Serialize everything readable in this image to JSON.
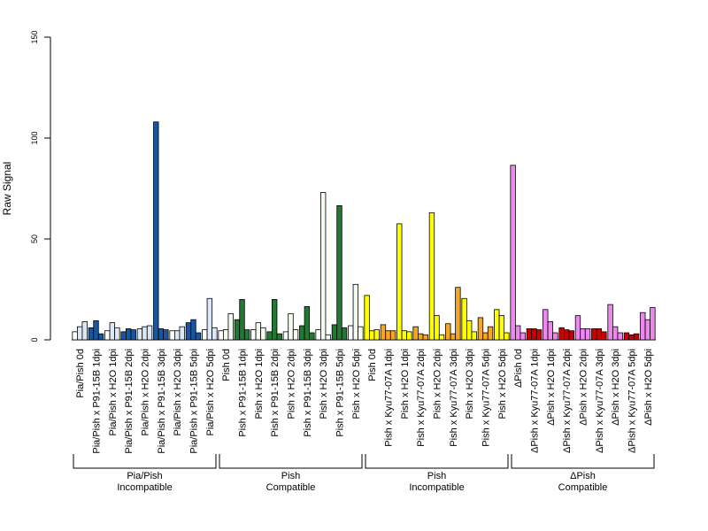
{
  "chart_data": {
    "type": "bar",
    "ylabel": "Raw Signal",
    "ylim": [
      0,
      150
    ],
    "yticks": [
      0,
      50,
      100,
      150
    ],
    "colors": {
      "white": "#ffffff",
      "pale_blue": "#dce8f6",
      "blue": "#1a56a0",
      "pale_green": "#f4fbf0",
      "green": "#217a33",
      "yellow": "#ffff00",
      "orange": "#f5a623",
      "red": "#cc0000",
      "violet": "#ee88ee"
    },
    "categories": [
      {
        "label": "Pia/Pish 0d",
        "values": [
          4,
          6.5,
          9
        ],
        "colors": [
          "white",
          "pale_blue",
          "pale_blue"
        ]
      },
      {
        "label": "Pia/Pish x P91-15B 1dpi",
        "values": [
          6,
          9.5,
          3
        ],
        "colors": [
          "blue",
          "blue",
          "blue"
        ]
      },
      {
        "label": "Pia/Pish x H2O 1dpi",
        "values": [
          4.5,
          8.5,
          6
        ],
        "colors": [
          "white",
          "pale_blue",
          "pale_blue"
        ]
      },
      {
        "label": "Pia/Pish x P91-15B 2dpi",
        "values": [
          4,
          5.5,
          5
        ],
        "colors": [
          "blue",
          "blue",
          "blue"
        ]
      },
      {
        "label": "Pia/Pish x H2O 2dpi",
        "values": [
          5.5,
          6.5,
          7
        ],
        "colors": [
          "pale_blue",
          "pale_blue",
          "pale_blue"
        ]
      },
      {
        "label": "Pia/Pish x P91-15B 3dpi",
        "values": [
          108,
          5.5,
          5
        ],
        "colors": [
          "blue",
          "blue",
          "blue"
        ]
      },
      {
        "label": "Pia/Pish x H2O 3dpi",
        "values": [
          4.5,
          4.5,
          6.5
        ],
        "colors": [
          "white",
          "pale_blue",
          "pale_blue"
        ]
      },
      {
        "label": "Pia/Pish x P91-15B 5dpi",
        "values": [
          8.5,
          10,
          3.5
        ],
        "colors": [
          "blue",
          "blue",
          "blue"
        ]
      },
      {
        "label": "Pia/Pish x H2O 5dpi",
        "values": [
          5,
          20.5,
          6
        ],
        "colors": [
          "white",
          "pale_blue",
          "pale_blue"
        ]
      },
      {
        "label": "Pish 0d",
        "values": [
          4.5,
          5,
          13
        ],
        "colors": [
          "white",
          "pale_green",
          "pale_green"
        ]
      },
      {
        "label": "Pish x P91-15B 1dpi",
        "values": [
          10,
          20,
          5
        ],
        "colors": [
          "green",
          "green",
          "green"
        ]
      },
      {
        "label": "Pish x H2O 1dpi",
        "values": [
          5,
          8.5,
          6
        ],
        "colors": [
          "white",
          "pale_green",
          "pale_green"
        ]
      },
      {
        "label": "Pish x P91-15B 2dpi",
        "values": [
          4,
          20,
          3
        ],
        "colors": [
          "green",
          "green",
          "green"
        ]
      },
      {
        "label": "Pish x H2O 2dpi",
        "values": [
          4,
          13,
          5
        ],
        "colors": [
          "white",
          "pale_green",
          "pale_green"
        ]
      },
      {
        "label": "Pish x P91-15B 3dpi",
        "values": [
          7,
          16.5,
          3.5
        ],
        "colors": [
          "green",
          "green",
          "green"
        ]
      },
      {
        "label": "Pish x H2O 3dpi",
        "values": [
          5,
          73,
          2.5
        ],
        "colors": [
          "white",
          "pale_green",
          "pale_green"
        ]
      },
      {
        "label": "Pish x P91-15B 5dpi",
        "values": [
          7.5,
          66.5,
          6
        ],
        "colors": [
          "green",
          "green",
          "green"
        ]
      },
      {
        "label": "Pish x H2O 5dpi",
        "values": [
          7,
          27.5,
          6.5
        ],
        "colors": [
          "white",
          "pale_green",
          "pale_green"
        ]
      },
      {
        "label": "Pish 0d",
        "values": [
          22,
          4.5,
          5
        ],
        "colors": [
          "yellow",
          "yellow",
          "yellow"
        ]
      },
      {
        "label": "Pish x Kyu77-07A 1dpi",
        "values": [
          7.5,
          4.5,
          4.5
        ],
        "colors": [
          "orange",
          "orange",
          "orange"
        ]
      },
      {
        "label": "Pish x H2O 1dpi",
        "values": [
          57.5,
          4.5,
          4
        ],
        "colors": [
          "yellow",
          "yellow",
          "yellow"
        ]
      },
      {
        "label": "Pish x Kyu77-07A 2dpi",
        "values": [
          6.5,
          3,
          2.5
        ],
        "colors": [
          "orange",
          "orange",
          "orange"
        ]
      },
      {
        "label": "Pish x H2O 2dpi",
        "values": [
          63,
          12,
          2.5
        ],
        "colors": [
          "yellow",
          "yellow",
          "yellow"
        ]
      },
      {
        "label": "Pish x Kyu77-07A 3dpi",
        "values": [
          8,
          3,
          26
        ],
        "colors": [
          "orange",
          "orange",
          "orange"
        ]
      },
      {
        "label": "Pish x H2O 3dpi",
        "values": [
          20.5,
          9.5,
          4
        ],
        "colors": [
          "yellow",
          "yellow",
          "yellow"
        ]
      },
      {
        "label": "Pish x Kyu77-07A 5dpi",
        "values": [
          11,
          3.5,
          6.5
        ],
        "colors": [
          "orange",
          "orange",
          "orange"
        ]
      },
      {
        "label": "Pish x H2O 5dpi",
        "values": [
          15,
          12,
          3.5
        ],
        "colors": [
          "yellow",
          "yellow",
          "yellow"
        ]
      },
      {
        "label": "ΔPish 0d",
        "values": [
          86.5,
          7,
          3.5
        ],
        "colors": [
          "violet",
          "violet",
          "violet"
        ]
      },
      {
        "label": "ΔPish x Kyu77-07A 1dpi",
        "values": [
          5.5,
          5.5,
          5
        ],
        "colors": [
          "red",
          "red",
          "red"
        ]
      },
      {
        "label": "ΔPish x H2O 1dpi",
        "values": [
          15,
          9,
          3.5
        ],
        "colors": [
          "violet",
          "violet",
          "violet"
        ]
      },
      {
        "label": "ΔPish x Kyu77-07A 2dpi",
        "values": [
          6,
          5,
          4.5
        ],
        "colors": [
          "red",
          "red",
          "red"
        ]
      },
      {
        "label": "ΔPish x H2O 2dpi",
        "values": [
          12,
          5.5,
          5.5
        ],
        "colors": [
          "violet",
          "violet",
          "violet"
        ]
      },
      {
        "label": "ΔPish x Kyu77-07A 3dpi",
        "values": [
          5.5,
          5.5,
          4
        ],
        "colors": [
          "red",
          "red",
          "red"
        ]
      },
      {
        "label": "ΔPish x H2O 3dpi",
        "values": [
          17.5,
          6.5,
          3.5
        ],
        "colors": [
          "violet",
          "violet",
          "violet"
        ]
      },
      {
        "label": "ΔPish x Kyu77-07A 5dpi",
        "values": [
          3.5,
          2.5,
          3
        ],
        "colors": [
          "red",
          "red",
          "red"
        ]
      },
      {
        "label": "ΔPish x H2O 5dpi",
        "values": [
          13.5,
          10,
          16
        ],
        "colors": [
          "violet",
          "violet",
          "violet"
        ]
      }
    ],
    "groups": [
      {
        "line1": "Pia/Pish",
        "line2": "Incompatible",
        "start": 0,
        "end": 8
      },
      {
        "line1": "Pish",
        "line2": "Compatible",
        "start": 9,
        "end": 17
      },
      {
        "line1": "Pish",
        "line2": "Incompatible",
        "start": 18,
        "end": 26
      },
      {
        "line1": "ΔPish",
        "line2": "Compatible",
        "start": 27,
        "end": 35
      }
    ]
  }
}
